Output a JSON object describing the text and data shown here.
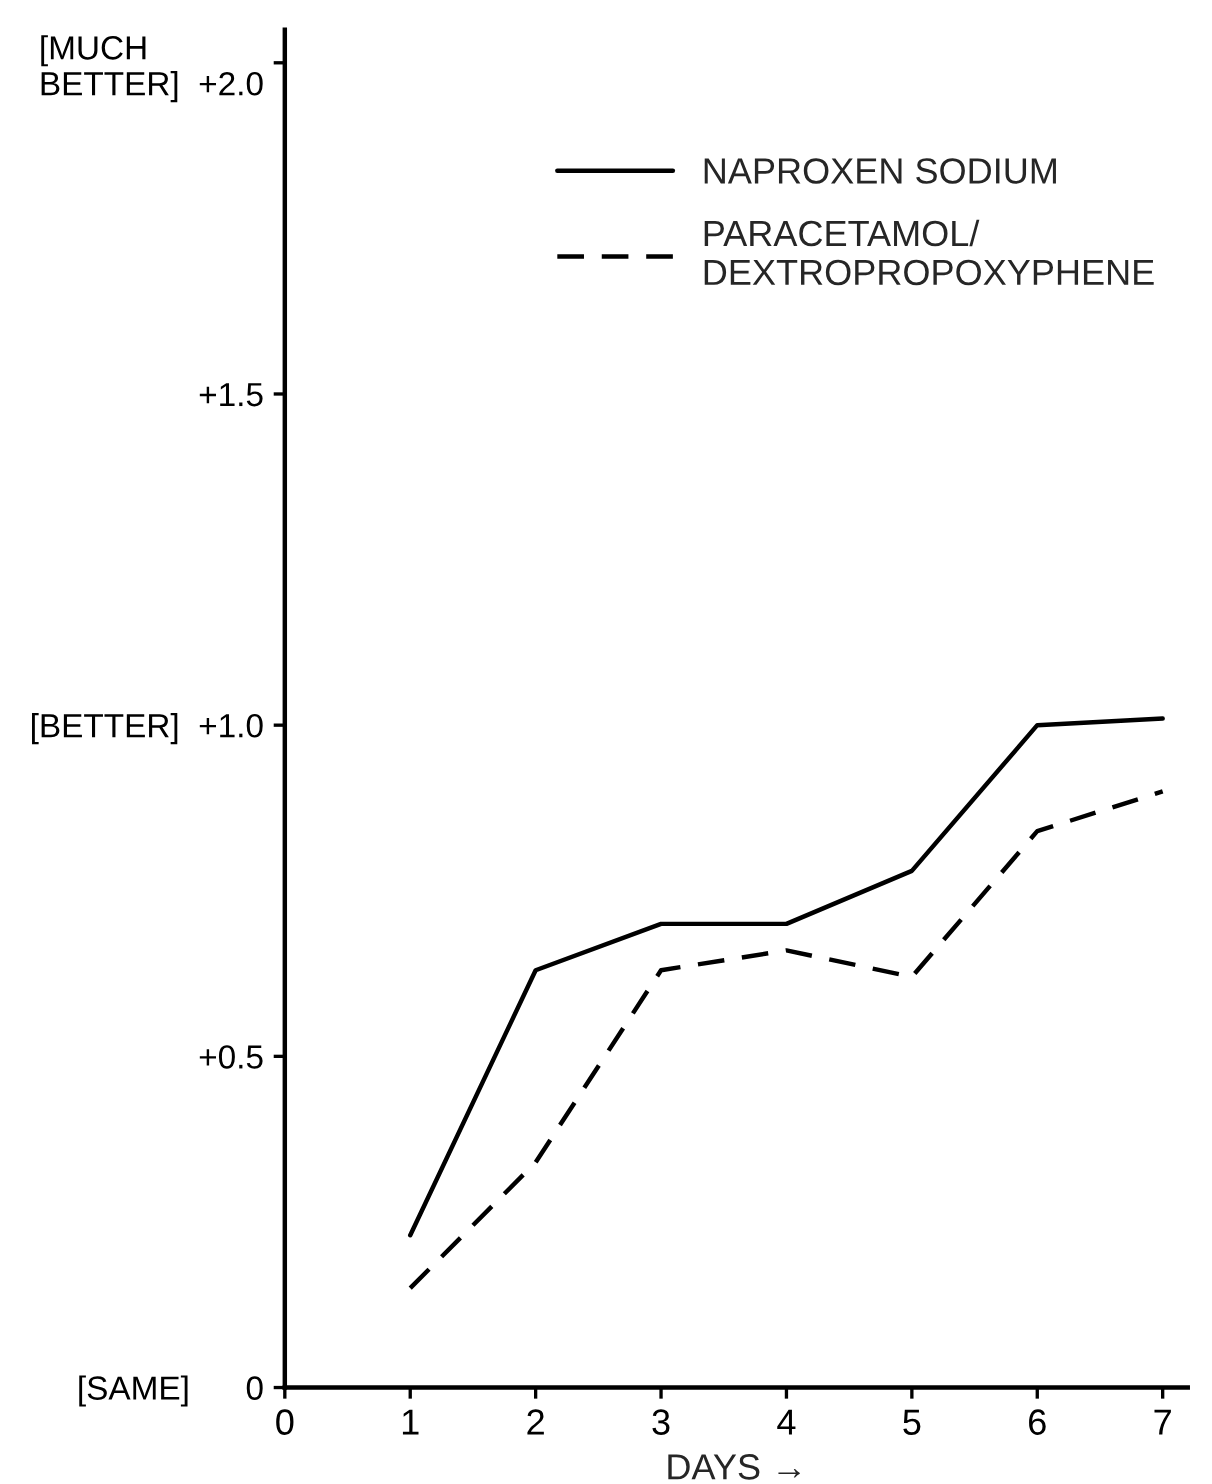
{
  "chart_data": {
    "type": "line",
    "xlabel": "DAYS →",
    "x": [
      1,
      2,
      3,
      4,
      5,
      6,
      7
    ],
    "series": [
      {
        "name": "NAPROXEN SODIUM",
        "color": "#000000",
        "line_style": "solid",
        "values": [
          0.23,
          0.63,
          0.7,
          0.7,
          0.78,
          1.0,
          1.01
        ]
      },
      {
        "name": "PARACETAMOL/\nDEXTROPROPOXYPHENE",
        "color": "#000000",
        "line_style": "dashed",
        "values": [
          0.15,
          0.34,
          0.63,
          0.66,
          0.62,
          0.84,
          0.9
        ]
      }
    ],
    "xlim": [
      0,
      7.2
    ],
    "xticks": [
      0,
      1,
      2,
      3,
      4,
      5,
      6,
      7
    ],
    "ylim": [
      0,
      2.05
    ],
    "yticks": [
      {
        "value": 0,
        "label": "[SAME]      0"
      },
      {
        "value": 0.5,
        "label": "+0.5"
      },
      {
        "value": 1.0,
        "label": "[BETTER]  +1.0"
      },
      {
        "value": 1.5,
        "label": "+1.5"
      },
      {
        "value": 2.0,
        "label": "[MUCH\nBETTER]  +2.0"
      }
    ],
    "grid": false,
    "legend": "top right",
    "marker": "none"
  }
}
